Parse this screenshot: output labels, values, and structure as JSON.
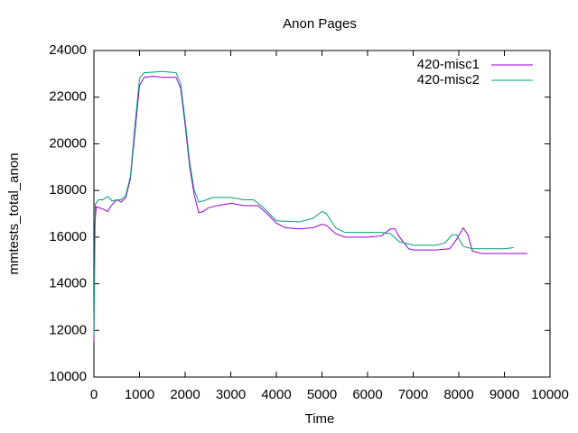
{
  "chart_data": {
    "type": "line",
    "title": "Anon Pages",
    "xlabel": "Time",
    "ylabel": "mmtests_total_anon",
    "xlim": [
      0,
      10000
    ],
    "xticks": [
      0,
      1000,
      2000,
      3000,
      4000,
      5000,
      6000,
      7000,
      8000,
      9000,
      10000
    ],
    "ylim": [
      10000,
      24000
    ],
    "yticks": [
      10000,
      12000,
      14000,
      16000,
      18000,
      20000,
      22000,
      24000
    ],
    "legend": "top-right",
    "series": [
      {
        "name": "420-misc1",
        "color": "#9400d3",
        "x": [
          0,
          20,
          50,
          200,
          300,
          400,
          500,
          600,
          700,
          800,
          900,
          1000,
          1100,
          1300,
          1500,
          1800,
          1900,
          2000,
          2100,
          2200,
          2300,
          2400,
          2500,
          2700,
          3000,
          3300,
          3600,
          3800,
          4000,
          4200,
          4500,
          4800,
          5000,
          5100,
          5300,
          5500,
          6000,
          6300,
          6500,
          6600,
          6700,
          6900,
          7000,
          7500,
          7800,
          7950,
          8100,
          8200,
          8300,
          8500,
          9000,
          9500
        ],
        "values": [
          11500,
          16500,
          17300,
          17200,
          17100,
          17400,
          17600,
          17500,
          17700,
          18500,
          20500,
          22500,
          22850,
          22900,
          22850,
          22850,
          22400,
          20800,
          19000,
          17800,
          17050,
          17100,
          17250,
          17350,
          17450,
          17350,
          17350,
          17000,
          16600,
          16400,
          16350,
          16400,
          16550,
          16500,
          16150,
          16000,
          16000,
          16050,
          16350,
          16350,
          16000,
          15500,
          15450,
          15450,
          15500,
          15900,
          16400,
          16100,
          15400,
          15300,
          15300,
          15300
        ]
      },
      {
        "name": "420-misc2",
        "color": "#009e73",
        "x": [
          0,
          30,
          100,
          200,
          300,
          400,
          500,
          600,
          700,
          800,
          900,
          1000,
          1100,
          1500,
          1800,
          1900,
          2000,
          2100,
          2200,
          2300,
          2400,
          2600,
          3000,
          3300,
          3500,
          3700,
          4000,
          4500,
          4800,
          5000,
          5100,
          5300,
          5500,
          6000,
          6300,
          6500,
          6700,
          7000,
          7500,
          7700,
          7850,
          7950,
          8100,
          8300,
          9000,
          9200
        ],
        "values": [
          11800,
          17400,
          17600,
          17600,
          17750,
          17550,
          17600,
          17600,
          17800,
          18600,
          20800,
          22800,
          23050,
          23100,
          23050,
          22600,
          21000,
          19200,
          18000,
          17500,
          17550,
          17700,
          17700,
          17600,
          17600,
          17300,
          16700,
          16650,
          16800,
          17100,
          17000,
          16400,
          16200,
          16200,
          16200,
          16150,
          15800,
          15650,
          15650,
          15750,
          16100,
          16100,
          15600,
          15500,
          15500,
          15550
        ]
      }
    ]
  }
}
